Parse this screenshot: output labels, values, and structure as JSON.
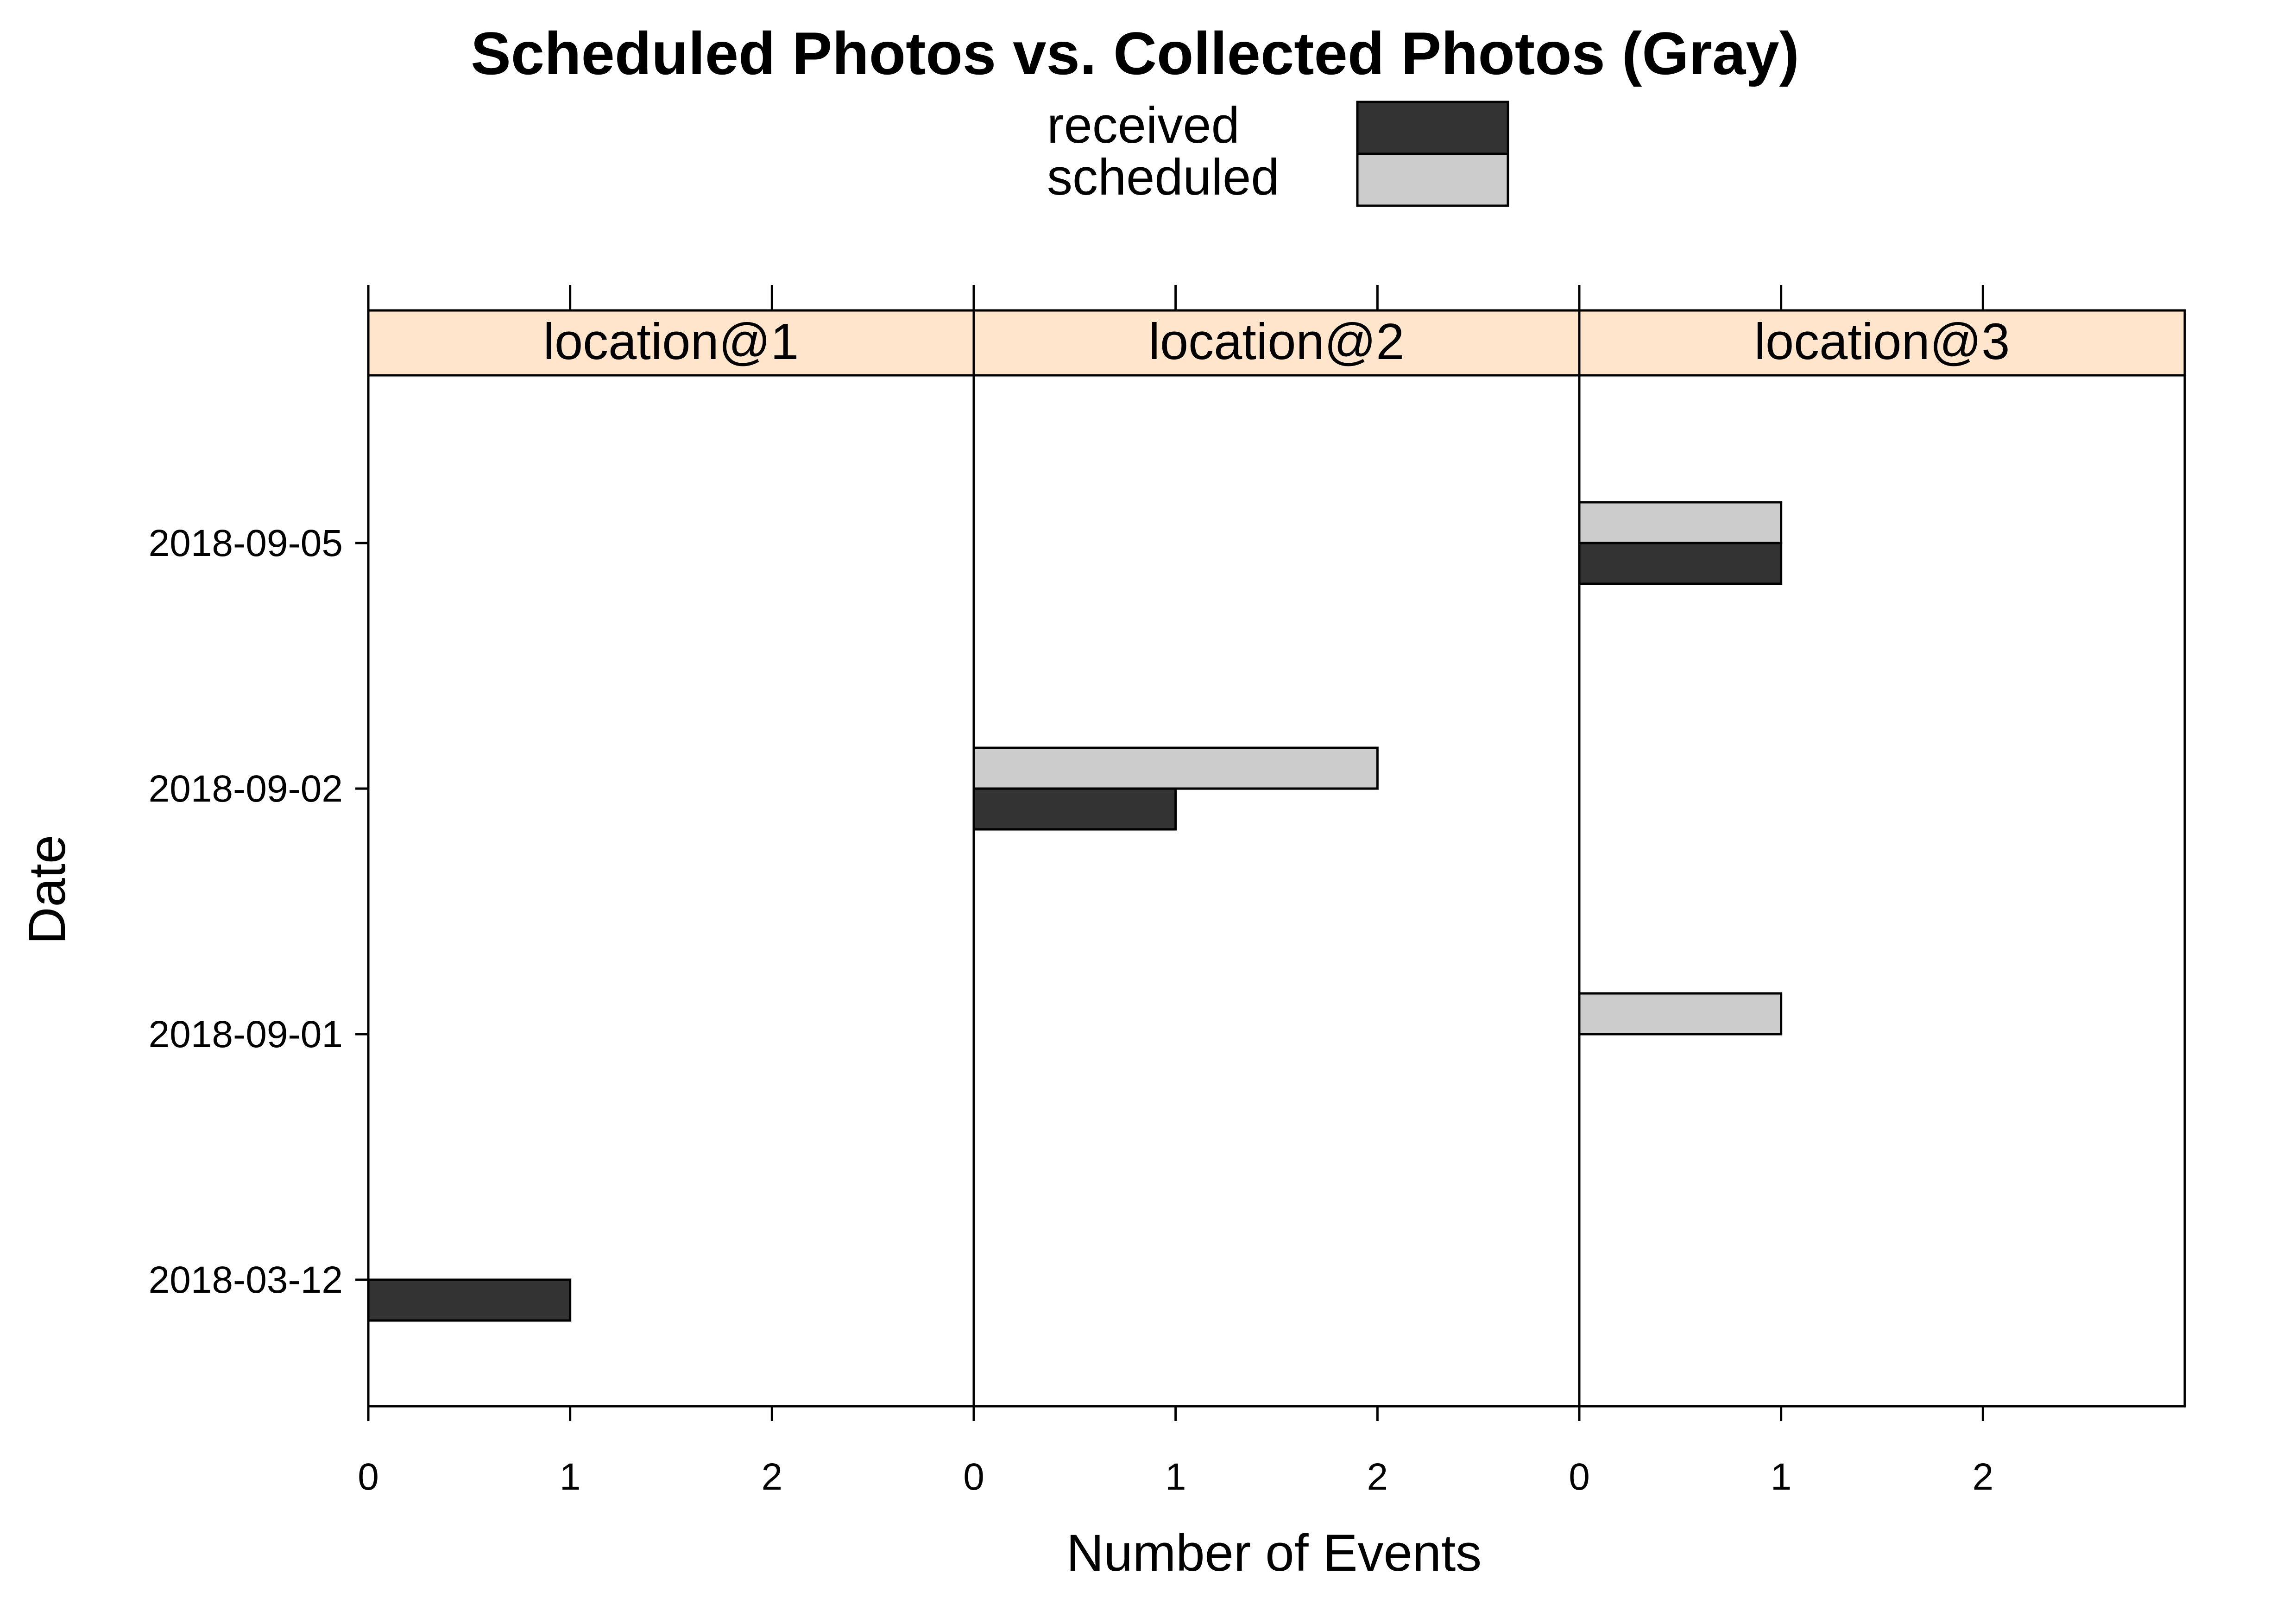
{
  "chart_data": {
    "type": "bar",
    "orientation": "horizontal",
    "title": "Scheduled Photos vs. Collected Photos (Gray)",
    "xlabel": "Number of Events",
    "ylabel": "Date",
    "categories": [
      "2018-03-12",
      "2018-09-01",
      "2018-09-02",
      "2018-09-05"
    ],
    "xlim": [
      0,
      3
    ],
    "xticks": [
      0,
      1,
      2
    ],
    "legend": {
      "placement": "top",
      "entries": [
        {
          "name": "received",
          "color": "#333333"
        },
        {
          "name": "scheduled",
          "color": "#cccccc"
        }
      ]
    },
    "strip_color": "#ffe5cc",
    "panels": [
      {
        "name": "location@1",
        "series": [
          {
            "name": "received",
            "values": [
              1,
              0,
              0,
              0
            ]
          },
          {
            "name": "scheduled",
            "values": [
              0,
              0,
              0,
              0
            ]
          }
        ]
      },
      {
        "name": "location@2",
        "series": [
          {
            "name": "received",
            "values": [
              0,
              0,
              1,
              0
            ]
          },
          {
            "name": "scheduled",
            "values": [
              0,
              0,
              2,
              0
            ]
          }
        ]
      },
      {
        "name": "location@3",
        "series": [
          {
            "name": "received",
            "values": [
              0,
              0,
              0,
              1
            ]
          },
          {
            "name": "scheduled",
            "values": [
              0,
              1,
              0,
              1
            ]
          }
        ]
      }
    ]
  }
}
